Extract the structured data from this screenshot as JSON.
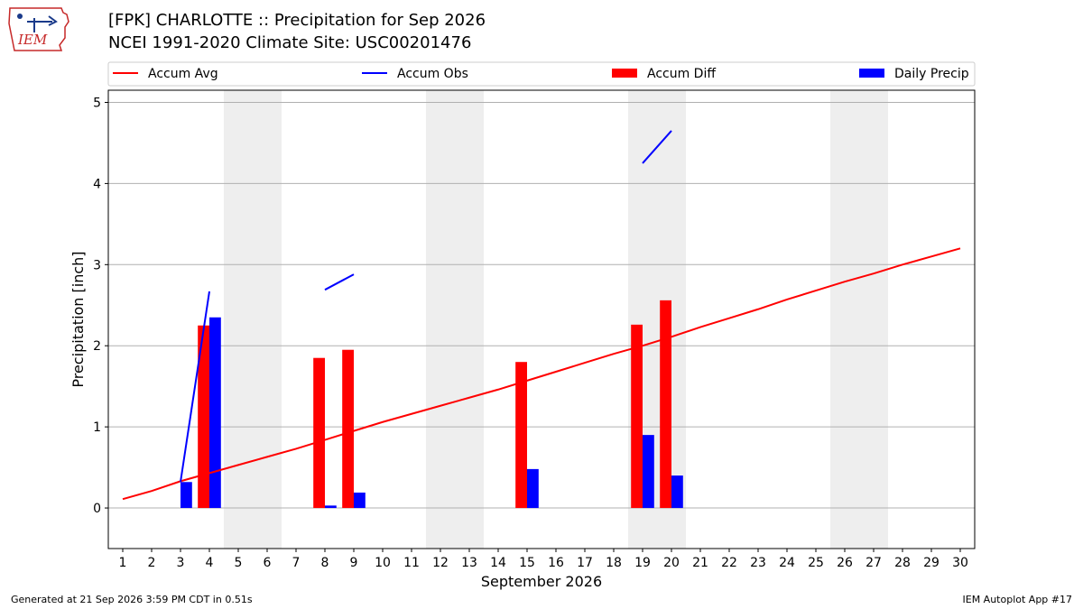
{
  "title_line1": "[FPK] CHARLOTTE :: Precipitation for Sep 2026",
  "title_line2": "NCEI 1991-2020 Climate Site: USC00201476",
  "logo_text": "IEM",
  "footer_left": "Generated at 21 Sep 2026 3:59 PM CDT in 0.51s",
  "footer_right": "IEM Autoplot App #17",
  "colors": {
    "avg": "#ff0000",
    "obs": "#0000ff",
    "diff": "#ff0000",
    "daily": "#0000ff",
    "weekend": "#eeeeee",
    "grid": "#b0b0b0"
  },
  "chart_data": {
    "type": "bar",
    "xlabel": "September 2026",
    "ylabel": "Precipitation [inch]",
    "xlim": [
      0.5,
      30.5
    ],
    "ylim": [
      -0.5,
      5.15
    ],
    "yticks": [
      0,
      1,
      2,
      3,
      4,
      5
    ],
    "grid": true,
    "legend": {
      "placement": "top",
      "entries": [
        "Accum Avg",
        "Accum Obs",
        "Accum Diff",
        "Daily Precip"
      ]
    },
    "days": [
      1,
      2,
      3,
      4,
      5,
      6,
      7,
      8,
      9,
      10,
      11,
      12,
      13,
      14,
      15,
      16,
      17,
      18,
      19,
      20,
      21,
      22,
      23,
      24,
      25,
      26,
      27,
      28,
      29,
      30
    ],
    "weekend_days": [
      5,
      6,
      12,
      13,
      19,
      20,
      26,
      27
    ],
    "series": [
      {
        "name": "Accum Avg",
        "kind": "line",
        "x": [
          1,
          2,
          3,
          4,
          5,
          6,
          7,
          8,
          9,
          10,
          11,
          12,
          13,
          14,
          15,
          16,
          17,
          18,
          19,
          20,
          21,
          22,
          23,
          24,
          25,
          26,
          27,
          28,
          29,
          30
        ],
        "values": [
          0.11,
          0.21,
          0.33,
          0.43,
          0.53,
          0.63,
          0.73,
          0.84,
          0.95,
          1.06,
          1.16,
          1.26,
          1.36,
          1.46,
          1.57,
          1.68,
          1.79,
          1.9,
          2.0,
          2.11,
          2.23,
          2.34,
          2.45,
          2.57,
          2.68,
          2.79,
          2.89,
          3.0,
          3.1,
          3.2
        ]
      },
      {
        "name": "Accum Obs",
        "kind": "line",
        "segments": [
          {
            "x": [
              3,
              4
            ],
            "values": [
              0.32,
              2.67
            ]
          },
          {
            "x": [
              8,
              9
            ],
            "values": [
              2.69,
              2.88
            ]
          },
          {
            "x": [
              19,
              20
            ],
            "values": [
              4.25,
              4.65
            ]
          }
        ]
      },
      {
        "name": "Accum Diff",
        "kind": "bar",
        "x": [
          4,
          8,
          9,
          15,
          19,
          20
        ],
        "values": [
          2.25,
          1.85,
          1.95,
          1.8,
          2.26,
          2.56
        ]
      },
      {
        "name": "Daily Precip",
        "kind": "bar",
        "x": [
          3,
          4,
          8,
          9,
          15,
          19,
          20
        ],
        "values": [
          0.32,
          2.35,
          0.03,
          0.19,
          0.48,
          0.9,
          0.4
        ]
      }
    ]
  }
}
